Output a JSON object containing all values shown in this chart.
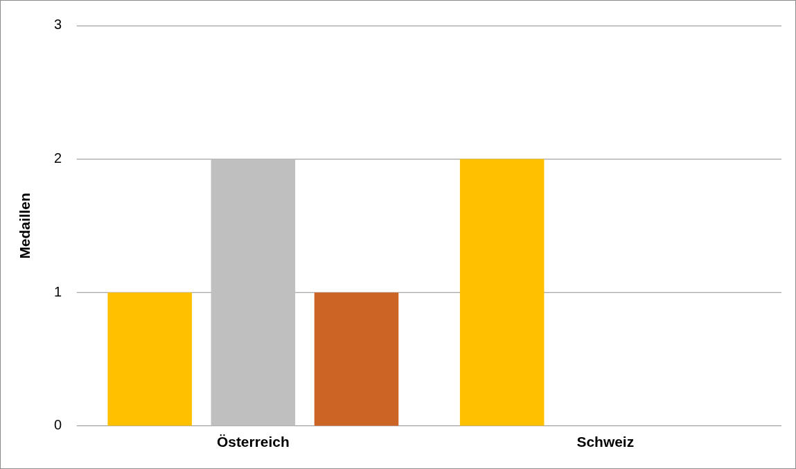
{
  "chart_data": {
    "type": "bar",
    "ylabel": "Medaillen",
    "categories": [
      "Österreich",
      "Schweiz"
    ],
    "series": [
      {
        "color": "#ffc000",
        "values": [
          1,
          2
        ]
      },
      {
        "color": "#bfbfbf",
        "values": [
          2,
          0
        ]
      },
      {
        "color": "#cc6425",
        "values": [
          1,
          0
        ]
      }
    ],
    "ylim": [
      0,
      3
    ],
    "yticks": [
      0,
      1,
      2,
      3
    ],
    "grid": "y",
    "legend": false
  }
}
